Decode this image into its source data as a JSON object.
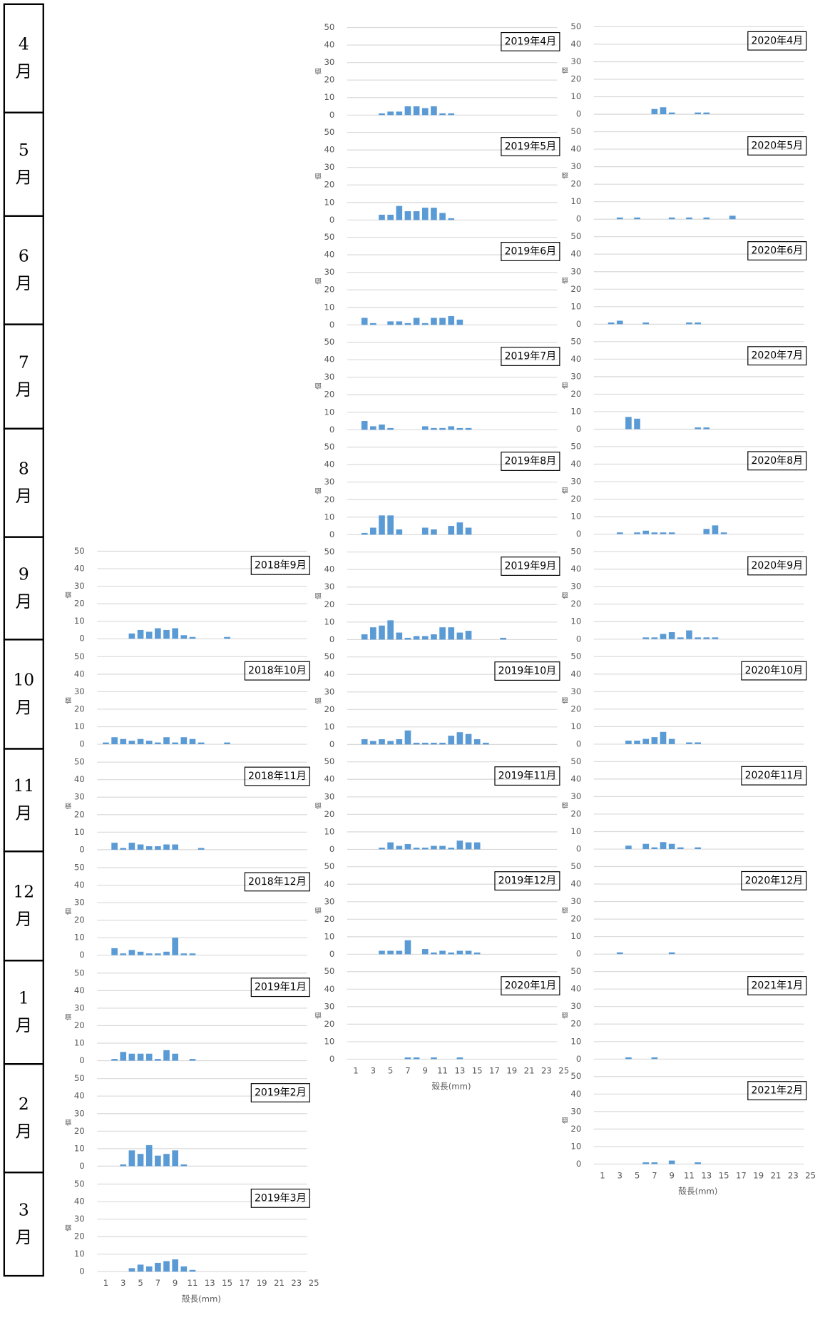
{
  "month_labels": [
    "4",
    "5",
    "6",
    "7",
    "8",
    "9",
    "10",
    "11",
    "12",
    "1",
    "2",
    "3"
  ],
  "month_suffix": "月",
  "chart_data": [
    {
      "type": "bar",
      "title": "2018年9月",
      "ylabel": "個",
      "x": [
        4,
        5,
        6,
        7,
        8,
        9,
        10,
        11,
        15
      ],
      "values": [
        3,
        5,
        4,
        6,
        5,
        6,
        2,
        1,
        1
      ],
      "xlim": [
        0,
        25
      ],
      "ylim": [
        0,
        50
      ],
      "yticks": [
        0,
        10,
        20,
        30,
        40,
        50
      ],
      "color": "#5b9bd5",
      "grid": true
    },
    {
      "type": "bar",
      "title": "2018年10月",
      "ylabel": "個",
      "x": [
        1,
        2,
        3,
        4,
        5,
        6,
        7,
        8,
        9,
        10,
        11,
        12,
        15
      ],
      "values": [
        1,
        4,
        3,
        2,
        3,
        2,
        1,
        4,
        1,
        4,
        3,
        1,
        1
      ],
      "xlim": [
        0,
        25
      ],
      "ylim": [
        0,
        50
      ],
      "yticks": [
        0,
        10,
        20,
        30,
        40,
        50
      ],
      "color": "#5b9bd5",
      "grid": true
    },
    {
      "type": "bar",
      "title": "2018年11月",
      "ylabel": "個",
      "x": [
        2,
        3,
        4,
        5,
        6,
        7,
        8,
        9,
        12
      ],
      "values": [
        4,
        1,
        4,
        3,
        2,
        2,
        3,
        3,
        1
      ],
      "xlim": [
        0,
        25
      ],
      "ylim": [
        0,
        50
      ],
      "yticks": [
        0,
        10,
        20,
        30,
        40,
        50
      ],
      "color": "#5b9bd5",
      "grid": true
    },
    {
      "type": "bar",
      "title": "2018年12月",
      "ylabel": "個",
      "x": [
        2,
        3,
        4,
        5,
        6,
        7,
        8,
        9,
        10,
        11
      ],
      "values": [
        4,
        1,
        3,
        2,
        1,
        1,
        2,
        10,
        1,
        1
      ],
      "xlim": [
        0,
        25
      ],
      "ylim": [
        0,
        50
      ],
      "yticks": [
        0,
        10,
        20,
        30,
        40,
        50
      ],
      "color": "#5b9bd5",
      "grid": true
    },
    {
      "type": "bar",
      "title": "2019年1月",
      "ylabel": "個",
      "x": [
        2,
        3,
        4,
        5,
        6,
        7,
        8,
        9,
        11
      ],
      "values": [
        1,
        5,
        4,
        4,
        4,
        1,
        6,
        4,
        1
      ],
      "xlim": [
        0,
        25
      ],
      "ylim": [
        0,
        50
      ],
      "yticks": [
        0,
        10,
        20,
        30,
        40,
        50
      ],
      "color": "#5b9bd5",
      "grid": true
    },
    {
      "type": "bar",
      "title": "2019年2月",
      "ylabel": "個",
      "x": [
        3,
        4,
        5,
        6,
        7,
        8,
        9,
        10
      ],
      "values": [
        1,
        9,
        7,
        12,
        6,
        7,
        9,
        1
      ],
      "xlim": [
        0,
        25
      ],
      "ylim": [
        0,
        50
      ],
      "yticks": [
        0,
        10,
        20,
        30,
        40,
        50
      ],
      "color": "#5b9bd5",
      "grid": true
    },
    {
      "type": "bar",
      "title": "2019年3月",
      "ylabel": "個",
      "xlabel": "殻長(mm)",
      "x": [
        4,
        5,
        6,
        7,
        8,
        9,
        10,
        11
      ],
      "values": [
        2,
        4,
        3,
        5,
        6,
        7,
        3,
        1
      ],
      "xlim": [
        0,
        25
      ],
      "xticks": [
        1,
        3,
        5,
        7,
        9,
        11,
        13,
        15,
        17,
        19,
        21,
        23,
        25
      ],
      "ylim": [
        0,
        50
      ],
      "yticks": [
        0,
        10,
        20,
        30,
        40,
        50
      ],
      "color": "#5b9bd5",
      "grid": true
    },
    {
      "type": "bar",
      "title": "2019年4月",
      "ylabel": "個",
      "x": [
        4,
        5,
        6,
        7,
        8,
        9,
        10,
        11,
        12
      ],
      "values": [
        1,
        2,
        2,
        5,
        5,
        4,
        5,
        1,
        1
      ],
      "xlim": [
        0,
        25
      ],
      "ylim": [
        0,
        50
      ],
      "yticks": [
        0,
        10,
        20,
        30,
        40,
        50
      ],
      "color": "#5b9bd5",
      "grid": true
    },
    {
      "type": "bar",
      "title": "2019年5月",
      "ylabel": "個",
      "x": [
        4,
        5,
        6,
        7,
        8,
        9,
        10,
        11,
        12
      ],
      "values": [
        3,
        3,
        8,
        5,
        5,
        7,
        7,
        4,
        1
      ],
      "xlim": [
        0,
        25
      ],
      "ylim": [
        0,
        50
      ],
      "yticks": [
        0,
        10,
        20,
        30,
        40,
        50
      ],
      "color": "#5b9bd5",
      "grid": true
    },
    {
      "type": "bar",
      "title": "2019年6月",
      "ylabel": "個",
      "x": [
        2,
        3,
        5,
        6,
        7,
        8,
        9,
        10,
        11,
        12,
        13
      ],
      "values": [
        4,
        1,
        2,
        2,
        1,
        4,
        1,
        4,
        4,
        5,
        3
      ],
      "xlim": [
        0,
        25
      ],
      "ylim": [
        0,
        50
      ],
      "yticks": [
        0,
        10,
        20,
        30,
        40,
        50
      ],
      "color": "#5b9bd5",
      "grid": true
    },
    {
      "type": "bar",
      "title": "2019年7月",
      "ylabel": "個",
      "x": [
        2,
        3,
        4,
        5,
        9,
        10,
        11,
        12,
        13,
        14
      ],
      "values": [
        5,
        2,
        3,
        1,
        2,
        1,
        1,
        2,
        1,
        1
      ],
      "xlim": [
        0,
        25
      ],
      "ylim": [
        0,
        50
      ],
      "yticks": [
        0,
        10,
        20,
        30,
        40,
        50
      ],
      "color": "#5b9bd5",
      "grid": true
    },
    {
      "type": "bar",
      "title": "2019年8月",
      "ylabel": "個",
      "x": [
        2,
        3,
        4,
        5,
        6,
        9,
        10,
        12,
        13,
        14
      ],
      "values": [
        1,
        4,
        11,
        11,
        3,
        4,
        3,
        5,
        7,
        4
      ],
      "xlim": [
        0,
        25
      ],
      "ylim": [
        0,
        50
      ],
      "yticks": [
        0,
        10,
        20,
        30,
        40,
        50
      ],
      "color": "#5b9bd5",
      "grid": true
    },
    {
      "type": "bar",
      "title": "2019年9月",
      "ylabel": "個",
      "x": [
        2,
        3,
        4,
        5,
        6,
        7,
        8,
        9,
        10,
        11,
        12,
        13,
        14,
        18
      ],
      "values": [
        3,
        7,
        8,
        11,
        4,
        1,
        2,
        2,
        3,
        7,
        7,
        4,
        5,
        1
      ],
      "xlim": [
        0,
        25
      ],
      "ylim": [
        0,
        50
      ],
      "yticks": [
        0,
        10,
        20,
        30,
        40,
        50
      ],
      "color": "#5b9bd5",
      "grid": true
    },
    {
      "type": "bar",
      "title": "2019年10月",
      "ylabel": "個",
      "x": [
        2,
        3,
        4,
        5,
        6,
        7,
        8,
        9,
        10,
        11,
        12,
        13,
        14,
        15,
        16
      ],
      "values": [
        3,
        2,
        3,
        2,
        3,
        8,
        1,
        1,
        1,
        1,
        5,
        7,
        6,
        3,
        1
      ],
      "xlim": [
        0,
        25
      ],
      "ylim": [
        0,
        50
      ],
      "yticks": [
        0,
        10,
        20,
        30,
        40,
        50
      ],
      "color": "#5b9bd5",
      "grid": true
    },
    {
      "type": "bar",
      "title": "2019年11月",
      "ylabel": "個",
      "x": [
        4,
        5,
        6,
        7,
        8,
        9,
        10,
        11,
        12,
        13,
        14,
        15
      ],
      "values": [
        1,
        4,
        2,
        3,
        1,
        1,
        2,
        2,
        1,
        5,
        4,
        4
      ],
      "xlim": [
        0,
        25
      ],
      "ylim": [
        0,
        50
      ],
      "yticks": [
        0,
        10,
        20,
        30,
        40,
        50
      ],
      "color": "#5b9bd5",
      "grid": true
    },
    {
      "type": "bar",
      "title": "2019年12月",
      "ylabel": "個",
      "x": [
        4,
        5,
        6,
        7,
        9,
        10,
        11,
        12,
        13,
        14,
        15
      ],
      "values": [
        2,
        2,
        2,
        8,
        3,
        1,
        2,
        1,
        2,
        2,
        1
      ],
      "xlim": [
        0,
        25
      ],
      "ylim": [
        0,
        50
      ],
      "yticks": [
        0,
        10,
        20,
        30,
        40,
        50
      ],
      "color": "#5b9bd5",
      "grid": true
    },
    {
      "type": "bar",
      "title": "2020年1月",
      "ylabel": "個",
      "xlabel": "殻長(mm)",
      "x": [
        7,
        8,
        10,
        13
      ],
      "values": [
        1,
        1,
        1,
        1
      ],
      "xlim": [
        0,
        25
      ],
      "xticks": [
        1,
        3,
        5,
        7,
        9,
        11,
        13,
        15,
        17,
        19,
        21,
        23,
        25
      ],
      "ylim": [
        0,
        50
      ],
      "yticks": [
        0,
        10,
        20,
        30,
        40,
        50
      ],
      "color": "#5b9bd5",
      "grid": true
    },
    {
      "type": "bar",
      "title": "2020年4月",
      "ylabel": "個",
      "x": [
        7,
        8,
        9,
        12,
        13
      ],
      "values": [
        3,
        4,
        1,
        1,
        1
      ],
      "xlim": [
        0,
        25
      ],
      "ylim": [
        0,
        50
      ],
      "yticks": [
        0,
        10,
        20,
        30,
        40,
        50
      ],
      "color": "#5b9bd5",
      "grid": true
    },
    {
      "type": "bar",
      "title": "2020年5月",
      "ylabel": "個",
      "x": [
        3,
        5,
        9,
        11,
        13,
        16
      ],
      "values": [
        1,
        1,
        1,
        1,
        1,
        2
      ],
      "xlim": [
        0,
        25
      ],
      "ylim": [
        0,
        50
      ],
      "yticks": [
        0,
        10,
        20,
        30,
        40,
        50
      ],
      "color": "#5b9bd5",
      "grid": true
    },
    {
      "type": "bar",
      "title": "2020年6月",
      "ylabel": "個",
      "x": [
        2,
        3,
        6,
        11,
        12
      ],
      "values": [
        1,
        2,
        1,
        1,
        1
      ],
      "xlim": [
        0,
        25
      ],
      "ylim": [
        0,
        50
      ],
      "yticks": [
        0,
        10,
        20,
        30,
        40,
        50
      ],
      "color": "#5b9bd5",
      "grid": true
    },
    {
      "type": "bar",
      "title": "2020年7月",
      "ylabel": "個",
      "x": [
        4,
        5,
        12,
        13
      ],
      "values": [
        7,
        6,
        1,
        1
      ],
      "xlim": [
        0,
        25
      ],
      "ylim": [
        0,
        50
      ],
      "yticks": [
        0,
        10,
        20,
        30,
        40,
        50
      ],
      "color": "#5b9bd5",
      "grid": true
    },
    {
      "type": "bar",
      "title": "2020年8月",
      "ylabel": "個",
      "x": [
        3,
        5,
        6,
        7,
        8,
        9,
        13,
        14,
        15
      ],
      "values": [
        1,
        1,
        2,
        1,
        1,
        1,
        3,
        5,
        1
      ],
      "xlim": [
        0,
        25
      ],
      "ylim": [
        0,
        50
      ],
      "yticks": [
        0,
        10,
        20,
        30,
        40,
        50
      ],
      "color": "#5b9bd5",
      "grid": true
    },
    {
      "type": "bar",
      "title": "2020年9月",
      "ylabel": "個",
      "x": [
        6,
        7,
        8,
        9,
        10,
        11,
        12,
        13,
        14
      ],
      "values": [
        1,
        1,
        3,
        4,
        1,
        5,
        1,
        1,
        1
      ],
      "xlim": [
        0,
        25
      ],
      "ylim": [
        0,
        50
      ],
      "yticks": [
        0,
        10,
        20,
        30,
        40,
        50
      ],
      "color": "#5b9bd5",
      "grid": true
    },
    {
      "type": "bar",
      "title": "2020年10月",
      "ylabel": "個",
      "x": [
        4,
        5,
        6,
        7,
        8,
        9,
        11,
        12
      ],
      "values": [
        2,
        2,
        3,
        4,
        7,
        3,
        1,
        1
      ],
      "xlim": [
        0,
        25
      ],
      "ylim": [
        0,
        50
      ],
      "yticks": [
        0,
        10,
        20,
        30,
        40,
        50
      ],
      "color": "#5b9bd5",
      "grid": true
    },
    {
      "type": "bar",
      "title": "2020年11月",
      "ylabel": "個",
      "x": [
        4,
        6,
        7,
        8,
        9,
        10,
        12
      ],
      "values": [
        2,
        3,
        1,
        4,
        3,
        1,
        1
      ],
      "xlim": [
        0,
        25
      ],
      "ylim": [
        0,
        50
      ],
      "yticks": [
        0,
        10,
        20,
        30,
        40,
        50
      ],
      "color": "#5b9bd5",
      "grid": true
    },
    {
      "type": "bar",
      "title": "2020年12月",
      "ylabel": "個",
      "x": [
        3,
        9
      ],
      "values": [
        1,
        1
      ],
      "xlim": [
        0,
        25
      ],
      "ylim": [
        0,
        50
      ],
      "yticks": [
        0,
        10,
        20,
        30,
        40,
        50
      ],
      "color": "#5b9bd5",
      "grid": true
    },
    {
      "type": "bar",
      "title": "2021年1月",
      "ylabel": "個",
      "x": [
        4,
        7
      ],
      "values": [
        1,
        1
      ],
      "xlim": [
        0,
        25
      ],
      "ylim": [
        0,
        50
      ],
      "yticks": [
        0,
        10,
        20,
        30,
        40,
        50
      ],
      "color": "#5b9bd5",
      "grid": true
    },
    {
      "type": "bar",
      "title": "2021年2月",
      "ylabel": "個",
      "xlabel": "殻長(mm)",
      "x": [
        6,
        7,
        9,
        12
      ],
      "values": [
        1,
        1,
        2,
        1
      ],
      "xlim": [
        0,
        25
      ],
      "xticks": [
        1,
        3,
        5,
        7,
        9,
        11,
        13,
        15,
        17,
        19,
        21,
        23,
        25
      ],
      "ylim": [
        0,
        50
      ],
      "yticks": [
        0,
        10,
        20,
        30,
        40,
        50
      ],
      "color": "#5b9bd5",
      "grid": true
    }
  ]
}
